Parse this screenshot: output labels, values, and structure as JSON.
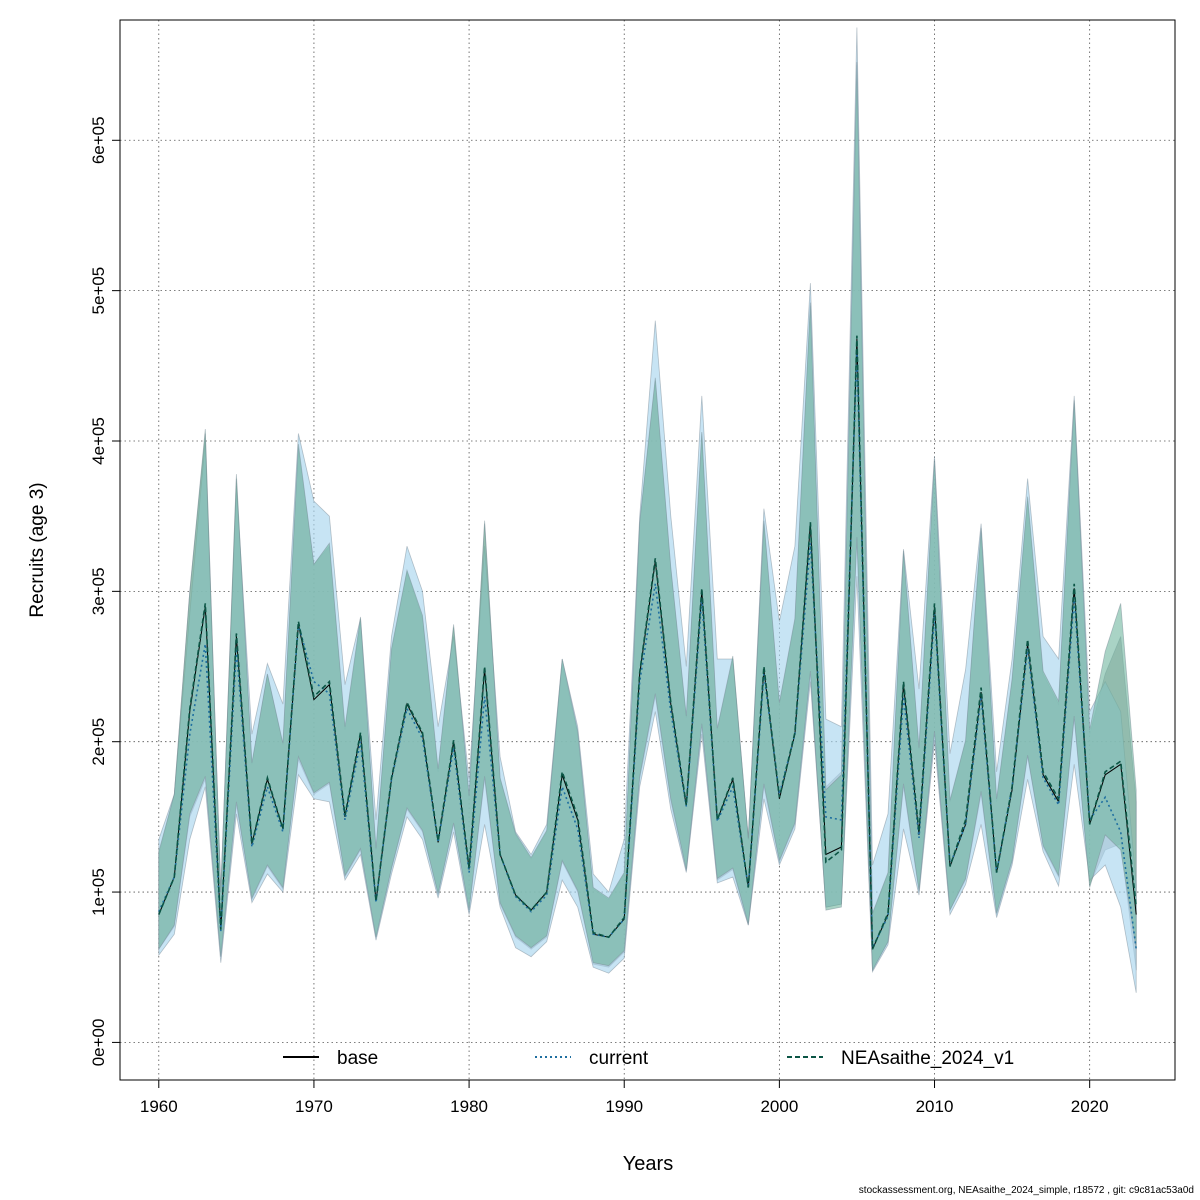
{
  "chart_data": {
    "type": "line",
    "xlabel": "Years",
    "ylabel": "Recruits (age 3)",
    "xlim": [
      1957.5,
      2025.5
    ],
    "ylim": [
      -25000,
      680000
    ],
    "x_ticks": [
      1960,
      1970,
      1980,
      1990,
      2000,
      2010,
      2020
    ],
    "x_tick_labels": [
      "1960",
      "1970",
      "1980",
      "1990",
      "2000",
      "2010",
      "2020"
    ],
    "y_ticks": [
      0,
      100000,
      200000,
      300000,
      400000,
      500000,
      600000
    ],
    "y_tick_labels": [
      "0e+00",
      "1e+05",
      "2e+05",
      "3e+05",
      "4e+05",
      "5e+05",
      "6e+05"
    ],
    "grid": true,
    "legend_position": "bottom",
    "years": [
      1960,
      1961,
      1962,
      1963,
      1964,
      1965,
      1966,
      1967,
      1968,
      1969,
      1970,
      1971,
      1972,
      1973,
      1974,
      1975,
      1976,
      1977,
      1978,
      1979,
      1980,
      1981,
      1982,
      1983,
      1984,
      1985,
      1986,
      1987,
      1988,
      1989,
      1990,
      1991,
      1992,
      1993,
      1994,
      1995,
      1996,
      1997,
      1998,
      1999,
      2000,
      2001,
      2002,
      2003,
      2004,
      2005,
      2006,
      2007,
      2008,
      2009,
      2010,
      2011,
      2012,
      2013,
      2014,
      2015,
      2016,
      2017,
      2018,
      2019,
      2020,
      2021,
      2022,
      2023
    ],
    "series": [
      {
        "name": "base",
        "color": "#000000",
        "dash": "solid",
        "band_color": "#a0a0a0",
        "values": [
          85000,
          110000,
          220000,
          290000,
          75000,
          270000,
          132000,
          175000,
          142000,
          278000,
          228000,
          238000,
          150000,
          205000,
          94000,
          175000,
          225000,
          205000,
          133000,
          200000,
          115000,
          248000,
          125000,
          98000,
          88000,
          100000,
          178000,
          148000,
          72000,
          70000,
          82000,
          245000,
          320000,
          225000,
          157000,
          300000,
          148000,
          175000,
          103000,
          248000,
          162000,
          205000,
          345000,
          125000,
          130000,
          468000,
          62000,
          85000,
          238000,
          138000,
          290000,
          117000,
          145000,
          233000,
          113000,
          168000,
          265000,
          178000,
          160000,
          302000,
          145000,
          178000,
          185000,
          85000
        ],
        "lower": [
          62000,
          77000,
          150000,
          175000,
          57000,
          158000,
          95000,
          117000,
          102000,
          188000,
          165000,
          172000,
          110000,
          128000,
          70000,
          115000,
          155000,
          140000,
          98000,
          145000,
          87000,
          175000,
          92000,
          70000,
          62000,
          70000,
          120000,
          100000,
          52000,
          50000,
          60000,
          175000,
          230000,
          160000,
          114000,
          210000,
          108000,
          115000,
          78000,
          170000,
          120000,
          145000,
          245000,
          90000,
          92000,
          335000,
          48000,
          67000,
          170000,
          100000,
          205000,
          88000,
          108000,
          165000,
          85000,
          120000,
          190000,
          130000,
          110000,
          215000,
          105000,
          128000,
          132000,
          48000
        ],
        "upper": [
          125000,
          165000,
          300000,
          405000,
          100000,
          375000,
          185000,
          245000,
          198000,
          395000,
          318000,
          330000,
          208000,
          280000,
          128000,
          260000,
          313000,
          282000,
          180000,
          276000,
          163000,
          345000,
          175000,
          138000,
          122000,
          140000,
          252000,
          205000,
          102000,
          95000,
          112000,
          345000,
          440000,
          315000,
          216000,
          405000,
          208000,
          255000,
          135000,
          345000,
          225000,
          280000,
          490000,
          170000,
          180000,
          650000,
          85000,
          112000,
          325000,
          195000,
          385000,
          160000,
          200000,
          340000,
          160000,
          240000,
          360000,
          245000,
          225000,
          425000,
          205000,
          245000,
          270000,
          160000
        ]
      },
      {
        "name": "current",
        "color": "#1f6fa0",
        "dash": "dotted",
        "band_color": "#a9d5ee",
        "values": [
          87000,
          110000,
          205000,
          265000,
          74000,
          262000,
          130000,
          170000,
          140000,
          278000,
          240000,
          232000,
          148000,
          200000,
          93000,
          175000,
          222000,
          202000,
          133000,
          196000,
          113000,
          230000,
          125000,
          97000,
          87000,
          98000,
          170000,
          142000,
          72000,
          70000,
          82000,
          240000,
          305000,
          220000,
          157000,
          295000,
          147000,
          170000,
          103000,
          245000,
          165000,
          205000,
          332000,
          150000,
          148000,
          460000,
          63000,
          84000,
          230000,
          136000,
          285000,
          118000,
          145000,
          230000,
          113000,
          170000,
          262000,
          176000,
          158000,
          296000,
          148000,
          163000,
          140000,
          62000
        ],
        "lower": [
          58000,
          72000,
          135000,
          170000,
          53000,
          152000,
          93000,
          112000,
          100000,
          178000,
          162000,
          160000,
          108000,
          125000,
          68000,
          112000,
          150000,
          135000,
          96000,
          140000,
          85000,
          145000,
          90000,
          63000,
          57000,
          67000,
          108000,
          90000,
          50000,
          46000,
          56000,
          170000,
          220000,
          155000,
          113000,
          205000,
          106000,
          110000,
          78000,
          162000,
          118000,
          142000,
          240000,
          90000,
          92000,
          310000,
          47000,
          65000,
          142000,
          98000,
          200000,
          85000,
          105000,
          145000,
          83000,
          118000,
          175000,
          127000,
          104000,
          185000,
          108000,
          118000,
          90000,
          33000
        ],
        "upper": [
          135000,
          165000,
          285000,
          400000,
          100000,
          370000,
          205000,
          252000,
          225000,
          405000,
          360000,
          350000,
          238000,
          282000,
          148000,
          270000,
          330000,
          300000,
          210000,
          270000,
          175000,
          330000,
          190000,
          140000,
          125000,
          145000,
          255000,
          210000,
          112000,
          100000,
          135000,
          350000,
          480000,
          350000,
          250000,
          430000,
          255000,
          255000,
          135000,
          355000,
          280000,
          330000,
          505000,
          215000,
          210000,
          675000,
          118000,
          152000,
          328000,
          235000,
          390000,
          192000,
          248000,
          345000,
          180000,
          255000,
          375000,
          270000,
          255000,
          430000,
          220000,
          240000,
          220000,
          105000
        ]
      },
      {
        "name": "NEAsaithe_2024_v1",
        "color": "#0b5545",
        "dash": "dashed",
        "band_color": "#6fb59e",
        "values": [
          85000,
          110000,
          222000,
          292000,
          75000,
          272000,
          132000,
          176000,
          142000,
          280000,
          230000,
          240000,
          151000,
          206000,
          94000,
          176000,
          226000,
          206000,
          134000,
          201000,
          116000,
          250000,
          125000,
          98000,
          88000,
          100000,
          180000,
          150000,
          73000,
          70000,
          83000,
          246000,
          322000,
          226000,
          158000,
          302000,
          148000,
          176000,
          103000,
          250000,
          163000,
          206000,
          346000,
          120000,
          128000,
          470000,
          62000,
          86000,
          240000,
          140000,
          292000,
          117000,
          148000,
          236000,
          113000,
          170000,
          268000,
          180000,
          162000,
          305000,
          145000,
          180000,
          187000,
          90000
        ],
        "lower": [
          62000,
          78000,
          152000,
          177000,
          57000,
          160000,
          96000,
          118000,
          103000,
          190000,
          166000,
          173000,
          111000,
          129000,
          70000,
          116000,
          156000,
          141000,
          99000,
          146000,
          88000,
          177000,
          93000,
          71000,
          63000,
          71000,
          121000,
          101000,
          53000,
          51000,
          61000,
          177000,
          232000,
          162000,
          115000,
          212000,
          109000,
          116000,
          79000,
          172000,
          121000,
          146000,
          247000,
          88000,
          90000,
          336000,
          48000,
          67000,
          172000,
          101000,
          207000,
          88000,
          109000,
          167000,
          86000,
          121000,
          191000,
          131000,
          111000,
          217000,
          103000,
          138000,
          128000,
          62000
        ],
        "upper": [
          127000,
          165000,
          300000,
          408000,
          100000,
          378000,
          186000,
          245000,
          199000,
          398000,
          318000,
          332000,
          210000,
          283000,
          129000,
          262000,
          314000,
          284000,
          182000,
          278000,
          164000,
          347000,
          176000,
          139000,
          123000,
          141000,
          255000,
          207000,
          103000,
          96000,
          113000,
          346000,
          442000,
          316000,
          217000,
          406000,
          209000,
          257000,
          136000,
          347000,
          226000,
          282000,
          492000,
          168000,
          178000,
          652000,
          86000,
          113000,
          327000,
          196000,
          388000,
          161000,
          201000,
          342000,
          162000,
          242000,
          363000,
          247000,
          227000,
          427000,
          208000,
          260000,
          292000,
          168000
        ]
      }
    ]
  },
  "footer": "stockassessment.org, NEAsaithe_2024_simple, r18572 , git: c9c81ac53a0d"
}
